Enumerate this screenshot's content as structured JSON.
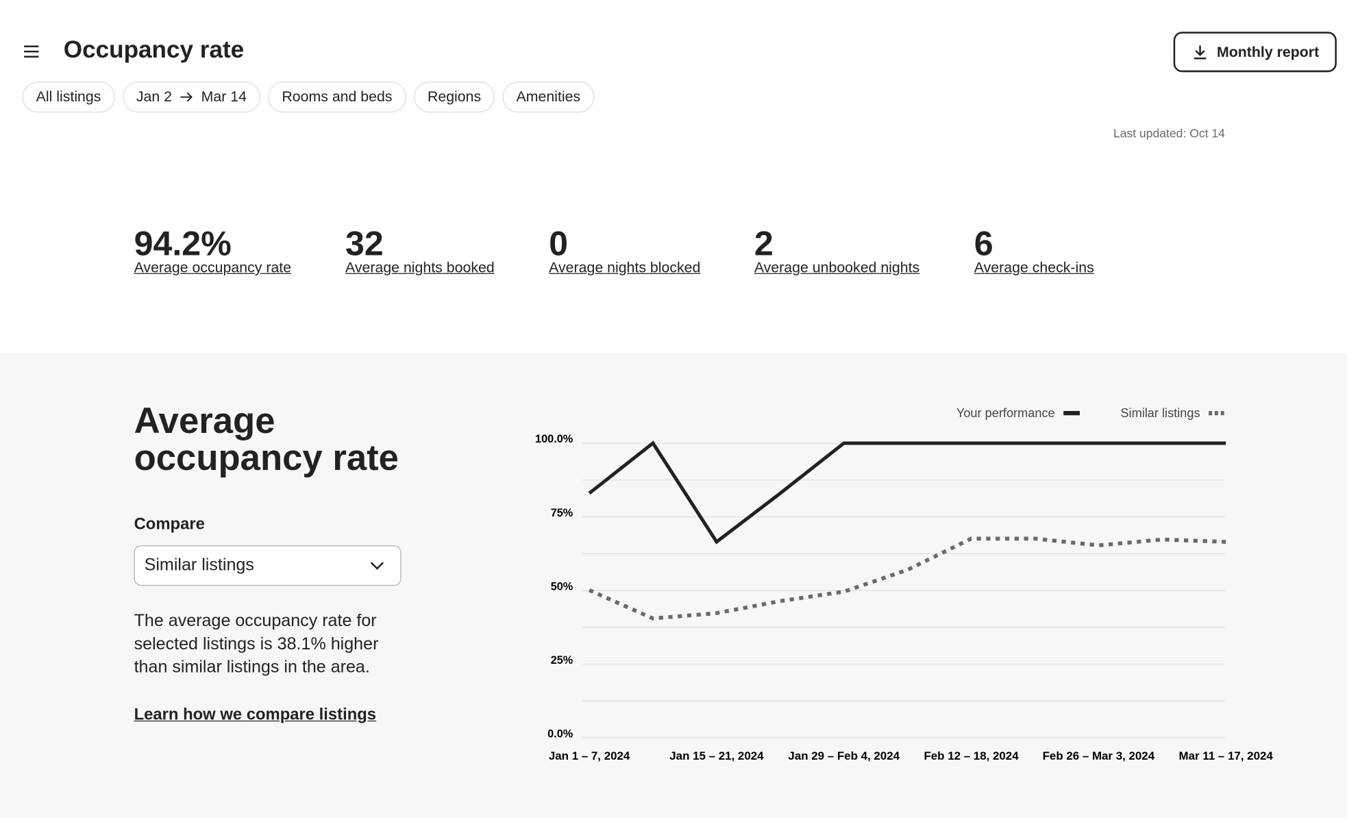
{
  "header": {
    "title": "Occupancy rate",
    "button": "Monthly report"
  },
  "filters": {
    "listings": "All listings",
    "date_from": "Jan 2",
    "date_to": "Mar 14",
    "rooms": "Rooms and beds",
    "regions": "Regions",
    "amenities": "Amenities"
  },
  "last_updated": "Last updated: Oct 14",
  "stats": [
    {
      "value": "94.2%",
      "label": "Average occupancy rate"
    },
    {
      "value": "32",
      "label": "Average nights booked"
    },
    {
      "value": "0",
      "label": "Average nights blocked"
    },
    {
      "value": "2",
      "label": "Average unbooked nights"
    },
    {
      "value": "6",
      "label": "Average check-ins"
    }
  ],
  "panel": {
    "title": "Average occupancy rate",
    "compare_label": "Compare",
    "compare_value": "Similar listings",
    "description": "The average occupancy rate for selected listings is 38.1% higher than similar listings in the area.",
    "link": "Learn how we compare listings"
  },
  "chart_data": {
    "type": "line",
    "categories": [
      "Jan 1 – 7, 2024",
      null,
      "Jan 15 – 21, 2024",
      null,
      "Jan 29 – Feb 4, 2024",
      null,
      "Feb 12 – 18, 2024",
      null,
      "Feb 26 – Mar 3, 2024",
      null,
      "Mar 11 – 17, 2024"
    ],
    "series": [
      {
        "name": "Your performance",
        "color": "#222222",
        "dash": false,
        "values": [
          83,
          100,
          66.5,
          83,
          100,
          100,
          100,
          100,
          100,
          100,
          100
        ]
      },
      {
        "name": "Similar listings",
        "color": "#6a6a6a",
        "dash": true,
        "values": [
          50.1,
          40.5,
          42.3,
          46.4,
          49.6,
          57,
          67.6,
          67.6,
          65.3,
          67.3,
          66.5
        ]
      }
    ],
    "ylim": [
      0,
      100
    ],
    "yticks": [
      {
        "value": 0,
        "label": "0.0%"
      },
      {
        "value": 25,
        "label": "25%"
      },
      {
        "value": 50,
        "label": "50%"
      },
      {
        "value": 75,
        "label": "75%"
      },
      {
        "value": 100,
        "label": "100.0%"
      }
    ],
    "minor_yticks": [
      12.5,
      37.5,
      62.5,
      87.5
    ],
    "grid": true
  }
}
